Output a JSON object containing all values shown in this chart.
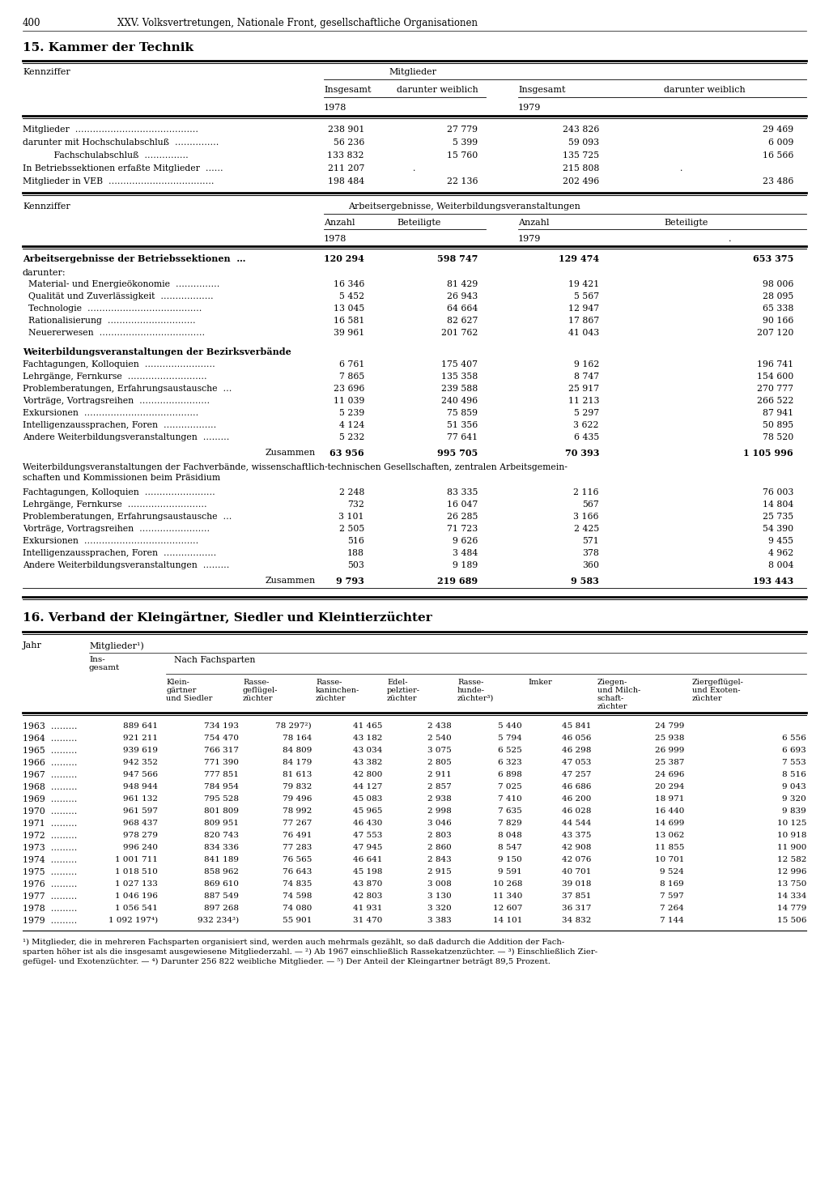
{
  "page_header_num": "400",
  "page_header_text": "XXV. Volksvertretungen, Nationale Front, gesellschaftliche Organisationen",
  "sec15_title": "15. Kammer der Technik",
  "sec16_title": "16. Verband der Kleingärtner, Siedler und Kleintierzüchter",
  "bg_color": "#ffffff",
  "text_color": "#000000",
  "mitgl_rows": [
    [
      "Mitglieder  ……………………………………",
      "238 901",
      "27 779",
      "243 826",
      "29 469"
    ],
    [
      "darunter mit Hochschulabschluß  ……………",
      "56 236",
      "5 399",
      "59 093",
      "6 009"
    ],
    [
      "           Fachschulabschluß  ……………",
      "133 832",
      "15 760",
      "135 725",
      "16 566"
    ],
    [
      "In Betriebssektionen erfaßte Mitglieder  ……",
      "211 207",
      ".",
      "215 808",
      "."
    ],
    [
      "Mitglieder in VEB  ………………………………",
      "198 484",
      "22 136",
      "202 496",
      "23 486"
    ]
  ],
  "betr_main": [
    "Arbeitsergebnisse der Betriebssektionen  …",
    "120 294",
    "598 747",
    "129 474",
    "653 375"
  ],
  "betr_rows": [
    [
      "  Material- und Energieökonomie  ……………",
      "16 346",
      "81 429",
      "19 421",
      "98 006"
    ],
    [
      "  Qualität und Zuverlässigkeit  ………………",
      "5 452",
      "26 943",
      "5 567",
      "28 095"
    ],
    [
      "  Technologie  …………………………………",
      "13 045",
      "64 664",
      "12 947",
      "65 338"
    ],
    [
      "  Rationalisierung  …………………………",
      "16 581",
      "82 627",
      "17 867",
      "90 166"
    ],
    [
      "  Neuererwesen  ………………………………",
      "39 961",
      "201 762",
      "41 043",
      "207 120"
    ]
  ],
  "bez_rows": [
    [
      "Fachtagungen, Kolloquien  ……………………",
      "6 761",
      "175 407",
      "9 162",
      "196 741"
    ],
    [
      "Lehrgänge, Fernkurse  ………………………",
      "7 865",
      "135 358",
      "8 747",
      "154 600"
    ],
    [
      "Problemberatungen, Erfahrungsaustausche  …",
      "23 696",
      "239 588",
      "25 917",
      "270 777"
    ],
    [
      "Vorträge, Vortragsreihen  ……………………",
      "11 039",
      "240 496",
      "11 213",
      "266 522"
    ],
    [
      "Exkursionen  …………………………………",
      "5 239",
      "75 859",
      "5 297",
      "87 941"
    ],
    [
      "Intelligenzaussprachen, Foren  ………………",
      "4 124",
      "51 356",
      "3 622",
      "50 895"
    ],
    [
      "Andere Weiterbildungsveranstaltungen  ………",
      "5 232",
      "77 641",
      "6 435",
      "78 520"
    ]
  ],
  "bez_sum": [
    "63 956",
    "995 705",
    "70 393",
    "1 105 996"
  ],
  "fach_rows": [
    [
      "Fachtagungen, Kolloquien  ……………………",
      "2 248",
      "83 335",
      "2 116",
      "76 003"
    ],
    [
      "Lehrgänge, Fernkurse  ………………………",
      "732",
      "16 047",
      "567",
      "14 804"
    ],
    [
      "Problemberatungen, Erfahrungsaustausche  …",
      "3 101",
      "26 285",
      "3 166",
      "25 735"
    ],
    [
      "Vorträge, Vortragsreihen  ……………………",
      "2 505",
      "71 723",
      "2 425",
      "54 390"
    ],
    [
      "Exkursionen  …………………………………",
      "516",
      "9 626",
      "571",
      "9 455"
    ],
    [
      "Intelligenzaussprachen, Foren  ………………",
      "188",
      "3 484",
      "378",
      "4 962"
    ],
    [
      "Andere Weiterbildungsveranstaltungen  ………",
      "503",
      "9 189",
      "360",
      "8 004"
    ]
  ],
  "fach_sum": [
    "9 793",
    "219 689",
    "9 583",
    "193 443"
  ],
  "rows16": [
    [
      "1963  ………",
      "889 641",
      "734 193",
      "78 297²)",
      "41 465",
      "2 438",
      "5 440",
      "45 841",
      "24 799",
      ""
    ],
    [
      "1964  ………",
      "921 211",
      "754 470",
      "78 164",
      "43 182",
      "2 540",
      "5 794",
      "46 056",
      "25 938",
      "6 556"
    ],
    [
      "1965  ………",
      "939 619",
      "766 317",
      "84 809",
      "43 034",
      "3 075",
      "6 525",
      "46 298",
      "26 999",
      "6 693"
    ],
    [
      "1966  ………",
      "942 352",
      "771 390",
      "84 179",
      "43 382",
      "2 805",
      "6 323",
      "47 053",
      "25 387",
      "7 553"
    ],
    [
      "1967  ………",
      "947 566",
      "777 851",
      "81 613",
      "42 800",
      "2 911",
      "6 898",
      "47 257",
      "24 696",
      "8 516"
    ],
    [
      "1968  ………",
      "948 944",
      "784 954",
      "79 832",
      "44 127",
      "2 857",
      "7 025",
      "46 686",
      "20 294",
      "9 043"
    ],
    [
      "1969  ………",
      "961 132",
      "795 528",
      "79 496",
      "45 083",
      "2 938",
      "7 410",
      "46 200",
      "18 971",
      "9 320"
    ],
    [
      "1970  ………",
      "961 597",
      "801 809",
      "78 992",
      "45 965",
      "2 998",
      "7 635",
      "46 028",
      "16 440",
      "9 839"
    ],
    [
      "1971  ………",
      "968 437",
      "809 951",
      "77 267",
      "46 430",
      "3 046",
      "7 829",
      "44 544",
      "14 699",
      "10 125"
    ],
    [
      "1972  ………",
      "978 279",
      "820 743",
      "76 491",
      "47 553",
      "2 803",
      "8 048",
      "43 375",
      "13 062",
      "10 918"
    ],
    [
      "1973  ………",
      "996 240",
      "834 336",
      "77 283",
      "47 945",
      "2 860",
      "8 547",
      "42 908",
      "11 855",
      "11 900"
    ],
    [
      "1974  ………",
      "1 001 711",
      "841 189",
      "76 565",
      "46 641",
      "2 843",
      "9 150",
      "42 076",
      "10 701",
      "12 582"
    ],
    [
      "1975  ………",
      "1 018 510",
      "858 962",
      "76 643",
      "45 198",
      "2 915",
      "9 591",
      "40 701",
      "9 524",
      "12 996"
    ],
    [
      "1976  ………",
      "1 027 133",
      "869 610",
      "74 835",
      "43 870",
      "3 008",
      "10 268",
      "39 018",
      "8 169",
      "13 750"
    ],
    [
      "1977  ………",
      "1 046 196",
      "887 549",
      "74 598",
      "42 803",
      "3 130",
      "11 340",
      "37 851",
      "7 597",
      "14 334"
    ],
    [
      "1978  ………",
      "1 056 541",
      "897 268",
      "74 080",
      "41 931",
      "3 320",
      "12 607",
      "36 317",
      "7 264",
      "14 779"
    ],
    [
      "1979  ………",
      "1 092 197⁴)",
      "932 234³)",
      "55 901",
      "31 470",
      "3 383",
      "14 101",
      "34 832",
      "7 144",
      "15 506"
    ]
  ],
  "footnotes": [
    "¹) Mitglieder, die in mehreren Fachsparten organisiert sind, werden auch mehrmals gezählt, so daß dadurch die Addition der Fach-",
    "sparten höher ist als die insgesamt ausgewiesene Mitgliederzahl. — ²) Ab 1967 einschließlich Rassekatzenzüchter. — ³) Einschließlich Zier-",
    "gefügel- und Exotenzüchter. — ⁴) Darunter 256 822 weibliche Mitglieder. — ⁵) Der Anteil der Kleingartner beträgt 89,5 Prozent."
  ]
}
